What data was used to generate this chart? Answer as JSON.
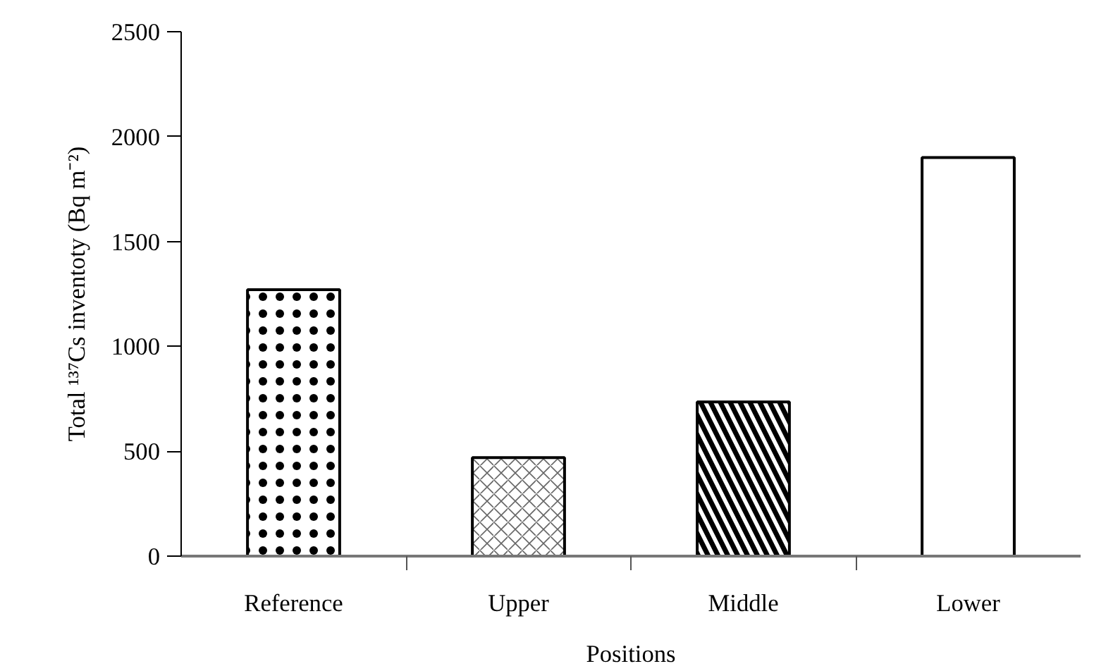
{
  "chart_data": {
    "type": "bar",
    "xlabel": "Positions",
    "ylabel": "Total ¹³⁷Cs inventoty (Bq m⁻²)",
    "categories": [
      "Reference",
      "Upper",
      "Middle",
      "Lower"
    ],
    "values": [
      1270,
      470,
      735,
      1900
    ],
    "colors": [
      "#ffffff",
      "#ffffff",
      "#ffffff",
      "#ffffff"
    ],
    "ylim": [
      0,
      2500
    ],
    "yticks": [
      0,
      500,
      1000,
      1500,
      2000,
      2500
    ],
    "grid": false
  }
}
